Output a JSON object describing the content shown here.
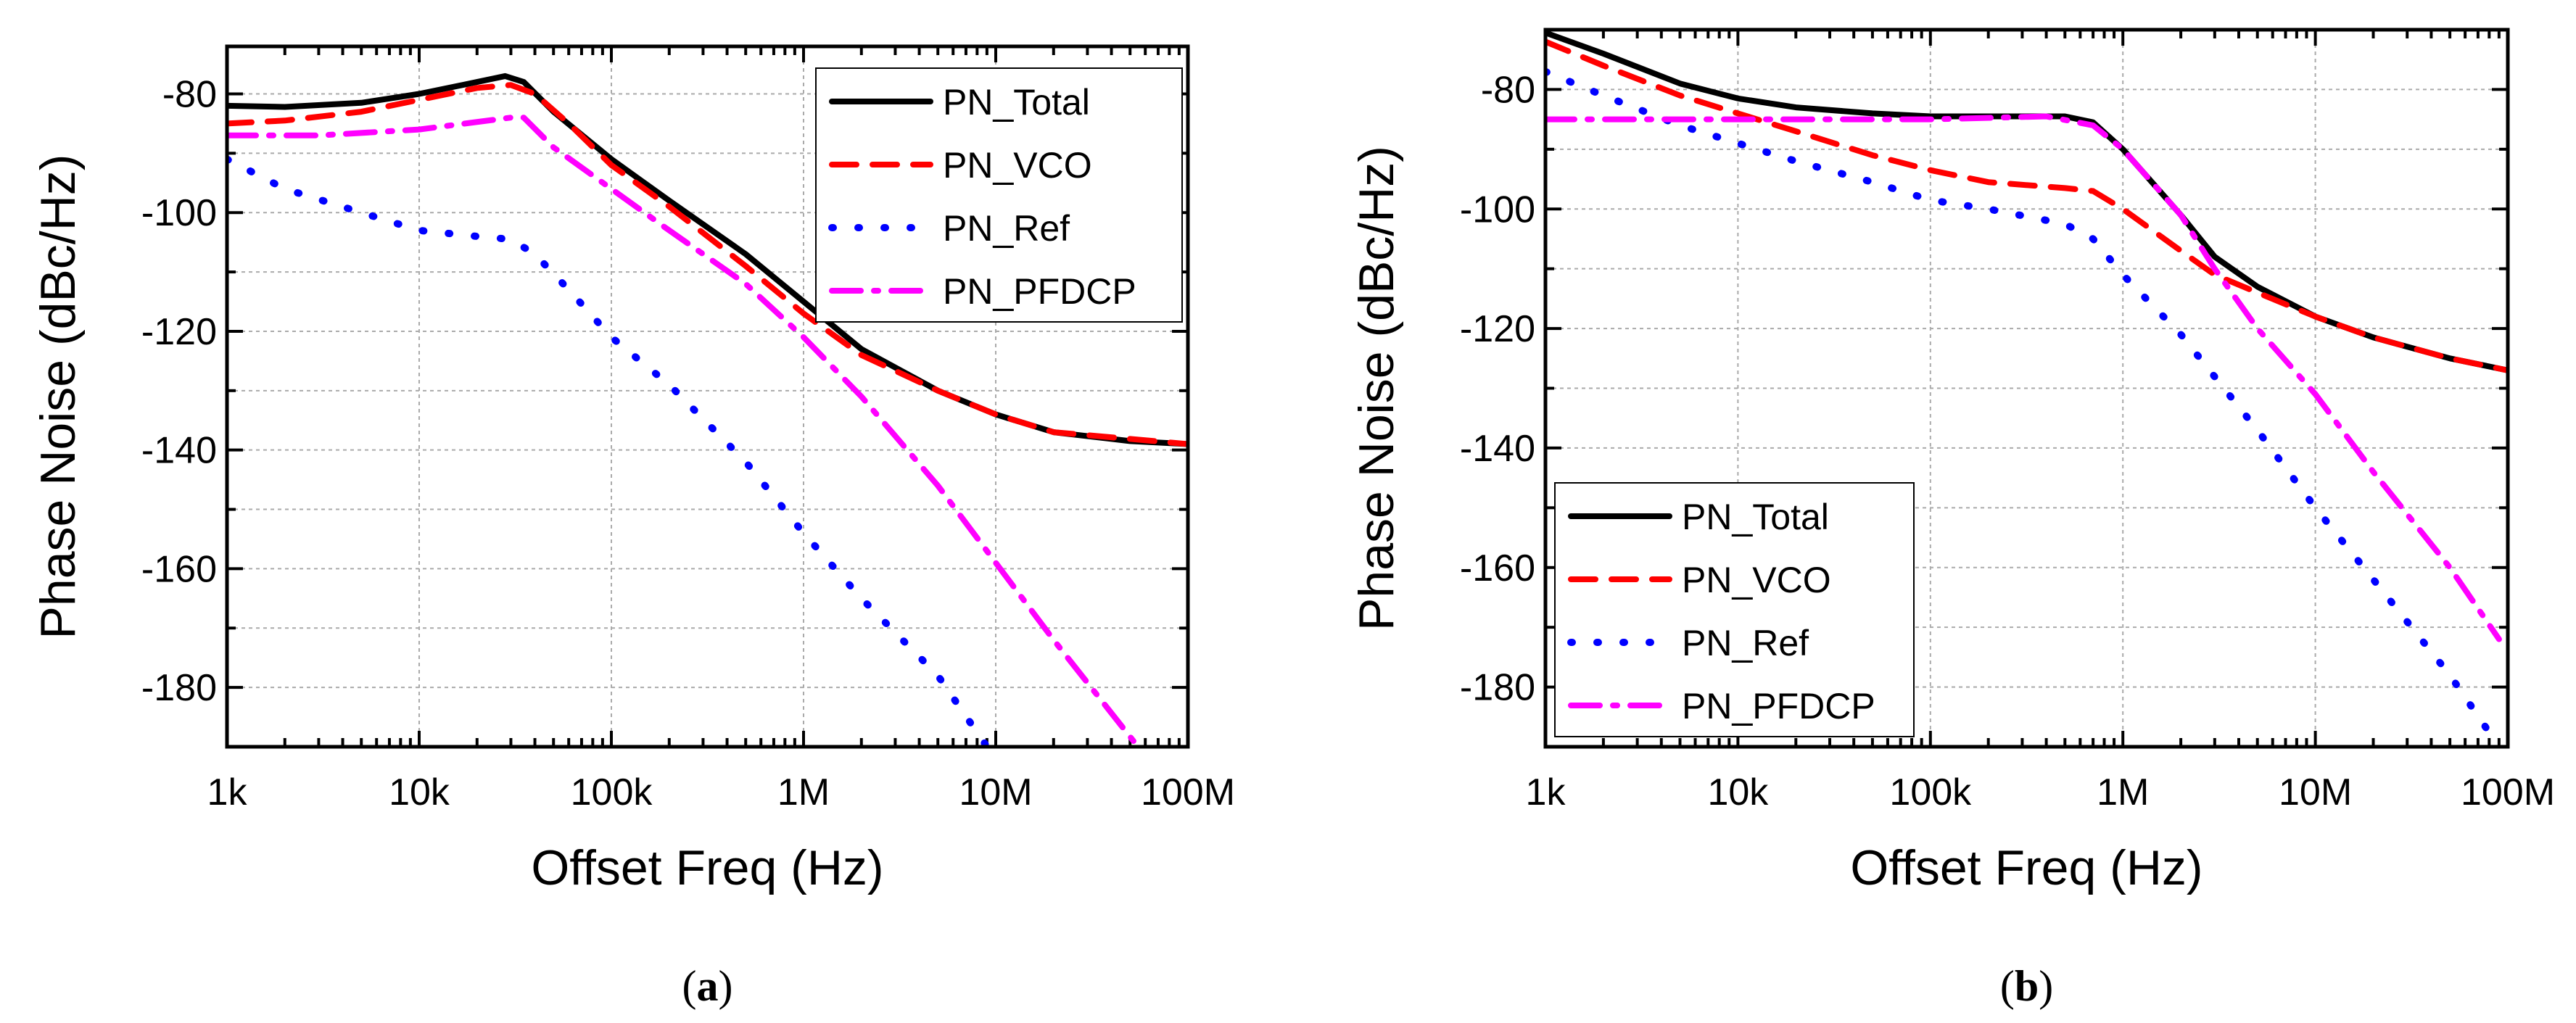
{
  "colors": {
    "PN_Total": "#000000",
    "PN_VCO": "#ff0000",
    "PN_Ref": "#0000ff",
    "PN_PFDCP": "#ff00ff"
  },
  "chart_data": [
    {
      "type": "line",
      "caption": "a",
      "xlabel": "Offset Freq (Hz)",
      "ylabel": "Phase Noise (dBc/Hz)",
      "xscale": "log",
      "xlim": [
        1000,
        100000000
      ],
      "ylim": [
        -190,
        -72
      ],
      "xticks": [
        1000,
        10000,
        100000,
        1000000,
        10000000,
        100000000
      ],
      "xtick_labels": [
        "1k",
        "10k",
        "100k",
        "1M",
        "10M",
        "100M"
      ],
      "yticks": [
        -80,
        -100,
        -120,
        -140,
        -160,
        -180
      ],
      "ytick_labels": [
        "-80",
        "-100",
        "-120",
        "-140",
        "-160",
        "-180"
      ],
      "grid": true,
      "legend_position": "top-right",
      "series": [
        {
          "name": "PN_Total",
          "style": "solid",
          "x": [
            1000.0,
            2000.0,
            5000.0,
            10000.0,
            20000.0,
            28000.0,
            35000.0,
            50000.0,
            100000.0,
            200000.0,
            500000.0,
            1000000.0,
            2000000.0,
            5000000.0,
            10000000.0,
            20000000.0,
            50000000.0,
            100000000.0
          ],
          "y": [
            -82,
            -82.2,
            -81.5,
            -80,
            -78,
            -77,
            -78,
            -83,
            -91,
            -98,
            -107,
            -115,
            -123,
            -130,
            -134,
            -137,
            -138.5,
            -139
          ]
        },
        {
          "name": "PN_VCO",
          "style": "dashed",
          "x": [
            1000.0,
            2000.0,
            5000.0,
            10000.0,
            20000.0,
            30000.0,
            40000.0,
            60000.0,
            100000.0,
            200000.0,
            500000.0,
            1000000.0,
            2000000.0,
            5000000.0,
            10000000.0,
            20000000.0,
            100000000.0
          ],
          "y": [
            -85,
            -84.5,
            -83,
            -81,
            -79,
            -78.5,
            -80,
            -85,
            -92,
            -99,
            -109,
            -117,
            -124,
            -130,
            -134,
            -137,
            -139
          ]
        },
        {
          "name": "PN_Ref",
          "style": "dotted",
          "x": [
            1000.0,
            2000.0,
            5000.0,
            10000.0,
            20000.0,
            30000.0,
            40000.0,
            60000.0,
            100000.0,
            200000.0,
            500000.0,
            1000000.0,
            2000000.0,
            5000000.0,
            9000000.0
          ],
          "y": [
            -91,
            -96,
            -100,
            -103,
            -104,
            -104.5,
            -107,
            -113,
            -121,
            -129,
            -142,
            -154,
            -165,
            -178,
            -190
          ]
        },
        {
          "name": "PN_PFDCP",
          "style": "dashdot",
          "x": [
            1000.0,
            3000.0,
            10000.0,
            30000.0,
            35000.0,
            50000.0,
            100000.0,
            200000.0,
            500000.0,
            1000000.0,
            2000000.0,
            5000000.0,
            10000000.0,
            20000000.0,
            55000000.0
          ],
          "y": [
            -87,
            -87,
            -86,
            -84,
            -84,
            -89,
            -96,
            -103,
            -112,
            -121,
            -131,
            -146,
            -159,
            -172,
            -190
          ]
        }
      ]
    },
    {
      "type": "line",
      "caption": "b",
      "xlabel": "Offset Freq (Hz)",
      "ylabel": "Phase Noise (dBc/Hz)",
      "xscale": "log",
      "xlim": [
        1000,
        100000000
      ],
      "ylim": [
        -190,
        -70
      ],
      "xticks": [
        1000,
        10000,
        100000,
        1000000,
        10000000,
        100000000
      ],
      "xtick_labels": [
        "1k",
        "10k",
        "100k",
        "1M",
        "10M",
        "100M"
      ],
      "yticks": [
        -80,
        -100,
        -120,
        -140,
        -160,
        -180
      ],
      "ytick_labels": [
        "-80",
        "-100",
        "-120",
        "-140",
        "-160",
        "-180"
      ],
      "grid": true,
      "legend_position": "bottom-left",
      "series": [
        {
          "name": "PN_Total",
          "style": "solid",
          "x": [
            1000.0,
            2000.0,
            5000.0,
            10000.0,
            20000.0,
            50000.0,
            100000.0,
            300000.0,
            500000.0,
            700000.0,
            1000000.0,
            2000000.0,
            3000000.0,
            5000000.0,
            10000000.0,
            20000000.0,
            50000000.0,
            100000000.0
          ],
          "y": [
            -70.5,
            -74,
            -79,
            -81.5,
            -83,
            -84,
            -84.5,
            -84.5,
            -84.5,
            -85.5,
            -90,
            -101,
            -108,
            -113,
            -118,
            -121.5,
            -125,
            -127
          ]
        },
        {
          "name": "PN_VCO",
          "style": "dashed",
          "x": [
            1000.0,
            2000.0,
            5000.0,
            10000.0,
            20000.0,
            50000.0,
            100000.0,
            200000.0,
            500000.0,
            700000.0,
            1000000.0,
            2000000.0,
            3000000.0,
            5000000.0,
            10000000.0,
            20000000.0,
            50000000.0,
            100000000.0
          ],
          "y": [
            -72,
            -76,
            -81,
            -84,
            -87,
            -91,
            -93.5,
            -95.5,
            -96.5,
            -97,
            -100,
            -107,
            -111,
            -114,
            -118,
            -121.5,
            -125,
            -127
          ]
        },
        {
          "name": "PN_Ref",
          "style": "dotted",
          "x": [
            1000.0,
            2000.0,
            5000.0,
            10000.0,
            20000.0,
            50000.0,
            100000.0,
            200000.0,
            500000.0,
            700000.0,
            1000000.0,
            2000000.0,
            5000000.0,
            10000000.0,
            20000000.0,
            50000000.0,
            90000000.0
          ],
          "y": [
            -77,
            -81,
            -86,
            -89,
            -92,
            -95.5,
            -98.5,
            -100,
            -102.5,
            -105,
            -111,
            -121,
            -137,
            -150,
            -162,
            -178,
            -190
          ]
        },
        {
          "name": "PN_PFDCP",
          "style": "dashdot",
          "x": [
            1000.0,
            100000.0,
            400000.0,
            700000.0,
            1000000.0,
            2000000.0,
            3000000.0,
            5000000.0,
            10000000.0,
            20000000.0,
            50000000.0,
            90000000.0
          ],
          "y": [
            -85,
            -85,
            -84.5,
            -86,
            -90,
            -101,
            -110,
            -120,
            -131,
            -144,
            -160,
            -172
          ]
        }
      ]
    }
  ]
}
